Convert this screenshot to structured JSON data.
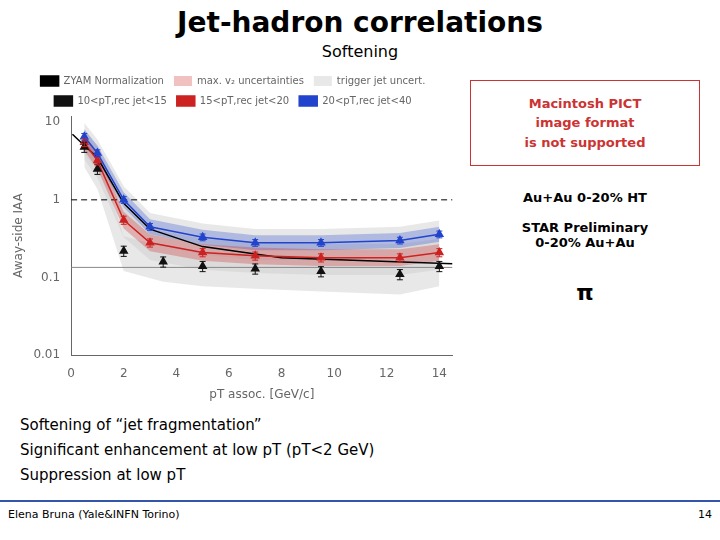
{
  "chart_data": {
    "type": "line",
    "title": "Jet-hadron correlations",
    "subtitle": "Softening",
    "x_label": "pT assoc. [GeV/c]",
    "y_label": "Away-side IAA",
    "log": "y",
    "xlim": [
      0,
      14.5
    ],
    "xticks": [
      0,
      2,
      4,
      6,
      8,
      10,
      12,
      14
    ],
    "ylim": [
      0.01,
      12
    ],
    "yticks": [
      0.01,
      0.1,
      1,
      10
    ],
    "grid": false,
    "legend": "top",
    "series": [
      {
        "name": "ZYAM Normalization",
        "color": "#000000",
        "marker": "none",
        "line_style": "solid",
        "x": [
          0.05,
          0.5,
          1.0,
          2.0,
          3.0,
          5.0,
          8.0,
          14.5
        ],
        "values": [
          7.0,
          5.0,
          3.5,
          0.9,
          0.42,
          0.25,
          0.18,
          0.15
        ]
      },
      {
        "name": "10<pT,rec jet<15",
        "color": "#111111",
        "marker": "triangle",
        "line_style": "none",
        "x": [
          0.5,
          1.0,
          2.0,
          3.5,
          5.0,
          7.0,
          9.5,
          12.5,
          14.0
        ],
        "values": [
          4.8,
          2.5,
          0.22,
          0.16,
          0.14,
          0.13,
          0.12,
          0.11,
          0.14
        ],
        "errors": [
          0.72,
          0.375,
          0.033,
          0.024,
          0.021,
          0.0195,
          0.018,
          0.0165,
          0.021
        ]
      },
      {
        "name": "15<pT,rec jet<20",
        "color": "#cc2222",
        "marker": "triangle",
        "line_style": "solid",
        "x": [
          0.5,
          1.0,
          2.0,
          3.0,
          5.0,
          7.0,
          9.5,
          12.5,
          14.0
        ],
        "values": [
          5.5,
          3.2,
          0.55,
          0.28,
          0.21,
          0.19,
          0.18,
          0.18,
          0.21
        ],
        "errors": [
          0.66,
          0.384,
          0.066,
          0.0336,
          0.0252,
          0.0228,
          0.0216,
          0.0216,
          0.0252
        ]
      },
      {
        "name": "20<pT,rec jet<40",
        "color": "#2244cc",
        "marker": "triangle",
        "line_style": "solid",
        "x": [
          0.5,
          1.0,
          2.0,
          3.0,
          5.0,
          7.0,
          9.5,
          12.5,
          14.0
        ],
        "values": [
          6.5,
          4.0,
          1.0,
          0.45,
          0.33,
          0.28,
          0.28,
          0.3,
          0.36
        ],
        "errors": [
          0.65,
          0.4,
          0.1,
          0.045,
          0.033,
          0.028,
          0.028,
          0.03,
          0.036
        ]
      }
    ],
    "bands": [
      {
        "name": "max. v₂ uncertainties",
        "parts": [
          {
            "color": "#cc2222",
            "x": [
              0.5,
              1.0,
              2.0,
              3.0,
              5.0,
              7.0,
              9.5,
              12.5,
              14.0
            ],
            "low": [
              4.29,
              2.496,
              0.429,
              0.2184,
              0.1638,
              0.1482,
              0.1404,
              0.1404,
              0.1638
            ],
            "high": [
              7.04,
              4.096,
              0.704,
              0.3584,
              0.2688,
              0.2432,
              0.2304,
              0.2304,
              0.2688
            ]
          },
          {
            "color": "#2244cc",
            "x": [
              0.5,
              1.0,
              2.0,
              3.0,
              5.0,
              7.0,
              9.5,
              12.5,
              14.0
            ],
            "low": [
              5.2,
              3.2,
              0.8,
              0.36,
              0.264,
              0.224,
              0.224,
              0.24,
              0.288
            ],
            "high": [
              8.125,
              5.0,
              1.25,
              0.5625,
              0.4125,
              0.35,
              0.35,
              0.375,
              0.45
            ]
          }
        ]
      },
      {
        "name": "trigger jet uncert.",
        "parts": [
          {
            "color": "#cccccc",
            "x": [
              0.5,
              1.0,
              2.0,
              3.5,
              5.0,
              7.0,
              9.5,
              12.5,
              14.0
            ],
            "low": [
              2.64,
              1.375,
              0.121,
              0.088,
              0.077,
              0.0715,
              0.066,
              0.0605,
              0.077
            ],
            "high": [
              7.44,
              3.875,
              0.341,
              0.248,
              0.217,
              0.2015,
              0.186,
              0.1705,
              0.217
            ]
          },
          {
            "color": "#cccccc",
            "x": [
              0.5,
              1.0,
              2.0,
              3.0,
              5.0,
              7.0,
              9.5,
              12.5,
              14.0
            ],
            "low": [
              3.3,
              1.92,
              0.33,
              0.168,
              0.126,
              0.114,
              0.108,
              0.108,
              0.126
            ],
            "high": [
              8.25,
              4.8,
              0.825,
              0.42,
              0.315,
              0.285,
              0.27,
              0.27,
              0.315
            ]
          },
          {
            "color": "#cccccc",
            "x": [
              0.5,
              1.0,
              2.0,
              3.0,
              5.0,
              7.0,
              9.5,
              12.5,
              14.0
            ],
            "low": [
              3.9,
              2.4,
              0.6,
              0.27,
              0.198,
              0.168,
              0.168,
              0.18,
              0.216
            ],
            "high": [
              9.75,
              6.0,
              1.5,
              0.675,
              0.495,
              0.42,
              0.42,
              0.45,
              0.54
            ]
          }
        ]
      }
    ],
    "reference_lines": [
      {
        "y": 1.0,
        "color": "#000000",
        "line_style": "dashed"
      },
      {
        "y": 0.135,
        "color": "#888888",
        "line_style": "solid"
      }
    ],
    "annotations": [
      {
        "text": "Macintosh PICT\nimage format\nis not supported",
        "color": "#cc3333"
      },
      {
        "text": "Au+Au 0-20% HT"
      },
      {
        "text": "STAR Preliminary\n0-20% Au+Au"
      },
      {
        "text": "π"
      }
    ],
    "notes": [
      "Softening of “jet fragmentation”",
      "Significant enhancement at low pT (pT<2 GeV)",
      "Suppression at low pT"
    ],
    "footer": [
      "Elena Bruna (Yale&INFN Torino)",
      "14"
    ]
  }
}
